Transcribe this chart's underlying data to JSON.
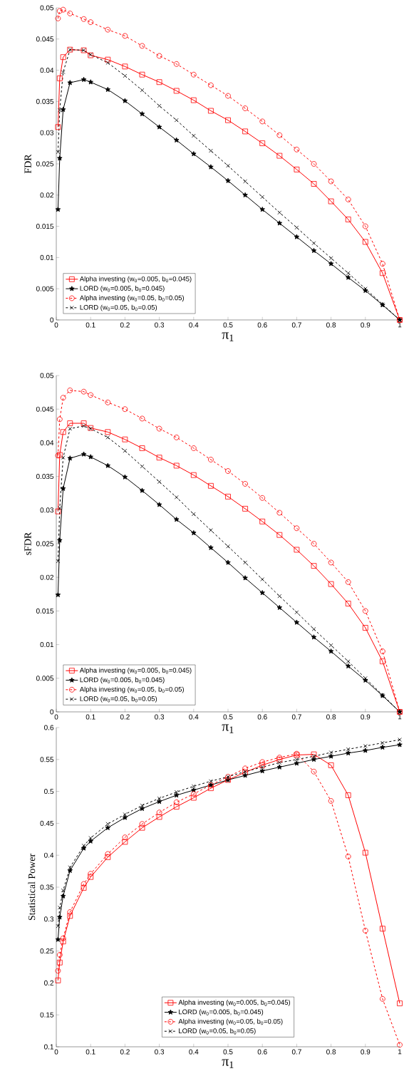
{
  "chart_data": [
    {
      "type": "line",
      "xlabel": "π$_{1}$",
      "ylabel": "FDR",
      "legend": "bottom left",
      "x": [
        0.005,
        0.01,
        0.02,
        0.04,
        0.08,
        0.1,
        0.15,
        0.2,
        0.25,
        0.3,
        0.35,
        0.4,
        0.45,
        0.5,
        0.55,
        0.6,
        0.65,
        0.7,
        0.75,
        0.8,
        0.85,
        0.9,
        0.95,
        1
      ],
      "xlim": [
        0,
        1
      ],
      "xticks": [
        0,
        0.1,
        0.2,
        0.3,
        0.4,
        0.5,
        0.6,
        0.7,
        0.8,
        0.9,
        1
      ],
      "ylim": [
        0,
        0.05
      ],
      "yticks": [
        0,
        0.005,
        0.01,
        0.015,
        0.02,
        0.025,
        0.03,
        0.035,
        0.04,
        0.045,
        0.05
      ],
      "series": [
        {
          "name": "Alpha investing (w$_{0}$=0.005, b$_{0}$=0.045)",
          "color": "#ff0000",
          "marker": "square",
          "line_style": "solid",
          "values": [
            0.0309,
            0.0387,
            0.0421,
            0.0433,
            0.0432,
            0.0424,
            0.0417,
            0.0406,
            0.0393,
            0.0381,
            0.0367,
            0.0352,
            0.0335,
            0.032,
            0.0302,
            0.0283,
            0.0263,
            0.0241,
            0.0218,
            0.019,
            0.0161,
            0.0125,
            0.0075,
            0
          ]
        },
        {
          "name": "LORD (w$_{0}$=0.005, b$_{0}$=0.045)",
          "color": "#000000",
          "marker": "star",
          "line_style": "solid",
          "values": [
            0.0177,
            0.0259,
            0.0337,
            0.038,
            0.0385,
            0.0381,
            0.0369,
            0.0351,
            0.033,
            0.0309,
            0.0288,
            0.0266,
            0.0245,
            0.0223,
            0.02,
            0.0177,
            0.0155,
            0.0133,
            0.0111,
            0.009,
            0.0068,
            0.0047,
            0.0024,
            0
          ]
        },
        {
          "name": "Alpha investing (w$_{0}$=0.05, b$_{0}$=0.05)",
          "color": "#ff0000",
          "marker": "circle",
          "line_style": "dashed",
          "values": [
            0.0483,
            0.0495,
            0.0497,
            0.0491,
            0.0482,
            0.0477,
            0.0465,
            0.0455,
            0.0439,
            0.0423,
            0.041,
            0.0393,
            0.0376,
            0.0359,
            0.0339,
            0.0318,
            0.0296,
            0.0273,
            0.025,
            0.0222,
            0.0193,
            0.015,
            0.009,
            0
          ]
        },
        {
          "name": "LORD (w$_{0}$=0.05, b$_{0}$=0.05)",
          "color": "#000000",
          "marker": "cross",
          "line_style": "dashed",
          "values": [
            0.0269,
            0.0336,
            0.0397,
            0.0433,
            0.0432,
            0.0425,
            0.0412,
            0.0391,
            0.0368,
            0.0343,
            0.032,
            0.0295,
            0.0271,
            0.0247,
            0.0222,
            0.0197,
            0.0172,
            0.0148,
            0.0123,
            0.0099,
            0.0075,
            0.005,
            0.0025,
            0
          ]
        }
      ]
    },
    {
      "type": "line",
      "xlabel": "π$_{1}$",
      "ylabel": "sFDR",
      "legend": "bottom left",
      "x": [
        0.005,
        0.01,
        0.02,
        0.04,
        0.08,
        0.1,
        0.15,
        0.2,
        0.25,
        0.3,
        0.35,
        0.4,
        0.45,
        0.5,
        0.55,
        0.6,
        0.65,
        0.7,
        0.75,
        0.8,
        0.85,
        0.9,
        0.95,
        1
      ],
      "xlim": [
        0,
        1
      ],
      "xticks": [
        0,
        0.1,
        0.2,
        0.3,
        0.4,
        0.5,
        0.6,
        0.7,
        0.8,
        0.9,
        1
      ],
      "ylim": [
        0,
        0.05
      ],
      "yticks": [
        0,
        0.005,
        0.01,
        0.015,
        0.02,
        0.025,
        0.03,
        0.035,
        0.04,
        0.045,
        0.05
      ],
      "series": [
        {
          "name": "Alpha investing (w$_{0}$=0.005, b$_{0}$=0.045)",
          "color": "#ff0000",
          "marker": "square",
          "line_style": "solid",
          "values": [
            0.0298,
            0.0382,
            0.0416,
            0.0429,
            0.0429,
            0.0422,
            0.0416,
            0.0405,
            0.0392,
            0.0378,
            0.0366,
            0.0352,
            0.0336,
            0.032,
            0.0302,
            0.0283,
            0.0263,
            0.0241,
            0.0217,
            0.019,
            0.0161,
            0.0125,
            0.0075,
            0
          ]
        },
        {
          "name": "LORD (w$_{0}$=0.005, b$_{0}$=0.045)",
          "color": "#000000",
          "marker": "star",
          "line_style": "solid",
          "values": [
            0.0174,
            0.0255,
            0.0332,
            0.0377,
            0.0383,
            0.0379,
            0.0366,
            0.0349,
            0.0329,
            0.0308,
            0.0286,
            0.0266,
            0.0244,
            0.0222,
            0.0199,
            0.0177,
            0.0155,
            0.0133,
            0.0111,
            0.009,
            0.0068,
            0.0047,
            0.0024,
            0
          ]
        },
        {
          "name": "Alpha investing (w$_{0}$=0.05, b$_{0}$=0.05)",
          "color": "#ff0000",
          "marker": "circle",
          "line_style": "dashed",
          "values": [
            0.0381,
            0.0435,
            0.0467,
            0.0478,
            0.0476,
            0.0471,
            0.046,
            0.045,
            0.0436,
            0.0421,
            0.0408,
            0.0392,
            0.0375,
            0.0358,
            0.0339,
            0.0318,
            0.0296,
            0.0273,
            0.025,
            0.0222,
            0.0193,
            0.015,
            0.009,
            0
          ]
        },
        {
          "name": "LORD (w$_{0}$=0.05, b$_{0}$=0.05)",
          "color": "#000000",
          "marker": "cross",
          "line_style": "dashed",
          "values": [
            0.0224,
            0.0303,
            0.0378,
            0.0421,
            0.0425,
            0.0421,
            0.0408,
            0.0388,
            0.0365,
            0.0342,
            0.0319,
            0.0294,
            0.027,
            0.0246,
            0.0222,
            0.0197,
            0.0172,
            0.0148,
            0.0123,
            0.0099,
            0.0075,
            0.005,
            0.0025,
            0
          ]
        }
      ]
    },
    {
      "type": "line",
      "xlabel": "π$_{1}$",
      "ylabel": "Statistical Power",
      "legend": "bottom",
      "x": [
        0.005,
        0.01,
        0.02,
        0.04,
        0.08,
        0.1,
        0.15,
        0.2,
        0.25,
        0.3,
        0.35,
        0.4,
        0.45,
        0.5,
        0.55,
        0.6,
        0.65,
        0.7,
        0.75,
        0.8,
        0.85,
        0.9,
        0.95,
        1
      ],
      "xlim": [
        0,
        1
      ],
      "xticks": [
        0,
        0.1,
        0.2,
        0.3,
        0.4,
        0.5,
        0.6,
        0.7,
        0.8,
        0.9,
        1
      ],
      "ylim": [
        0.1,
        0.6
      ],
      "yticks": [
        0.1,
        0.15,
        0.2,
        0.25,
        0.3,
        0.35,
        0.4,
        0.45,
        0.5,
        0.55,
        0.6
      ],
      "series": [
        {
          "name": "Alpha investing (w$_{0}$=0.005, b$_{0}$=0.045)",
          "color": "#ff0000",
          "marker": "square",
          "line_style": "solid",
          "values": [
            0.204,
            0.232,
            0.265,
            0.305,
            0.349,
            0.366,
            0.397,
            0.421,
            0.443,
            0.46,
            0.476,
            0.49,
            0.505,
            0.518,
            0.53,
            0.541,
            0.55,
            0.557,
            0.558,
            0.541,
            0.494,
            0.404,
            0.285,
            0.168
          ]
        },
        {
          "name": "LORD (w$_{0}$=0.005, b$_{0}$=0.045)",
          "color": "#000000",
          "marker": "star",
          "line_style": "solid",
          "values": [
            0.268,
            0.303,
            0.336,
            0.376,
            0.411,
            0.422,
            0.443,
            0.459,
            0.473,
            0.484,
            0.494,
            0.502,
            0.51,
            0.518,
            0.525,
            0.532,
            0.538,
            0.544,
            0.55,
            0.555,
            0.56,
            0.564,
            0.569,
            0.573
          ]
        },
        {
          "name": "Alpha investing (w$_{0}$=0.05, b$_{0}$=0.05)",
          "color": "#ff0000",
          "marker": "circle",
          "line_style": "dashed",
          "values": [
            0.219,
            0.244,
            0.27,
            0.311,
            0.355,
            0.371,
            0.402,
            0.428,
            0.449,
            0.467,
            0.483,
            0.496,
            0.51,
            0.523,
            0.536,
            0.546,
            0.553,
            0.559,
            0.531,
            0.485,
            0.398,
            0.282,
            0.175,
            0.103
          ]
        },
        {
          "name": "LORD (w$_{0}$=0.05, b$_{0}$=0.05)",
          "color": "#000000",
          "marker": "cross",
          "line_style": "dashed",
          "values": [
            0.289,
            0.318,
            0.345,
            0.381,
            0.415,
            0.427,
            0.449,
            0.464,
            0.478,
            0.489,
            0.499,
            0.508,
            0.516,
            0.523,
            0.531,
            0.538,
            0.545,
            0.55,
            0.555,
            0.561,
            0.566,
            0.571,
            0.576,
            0.581
          ]
        }
      ]
    }
  ]
}
